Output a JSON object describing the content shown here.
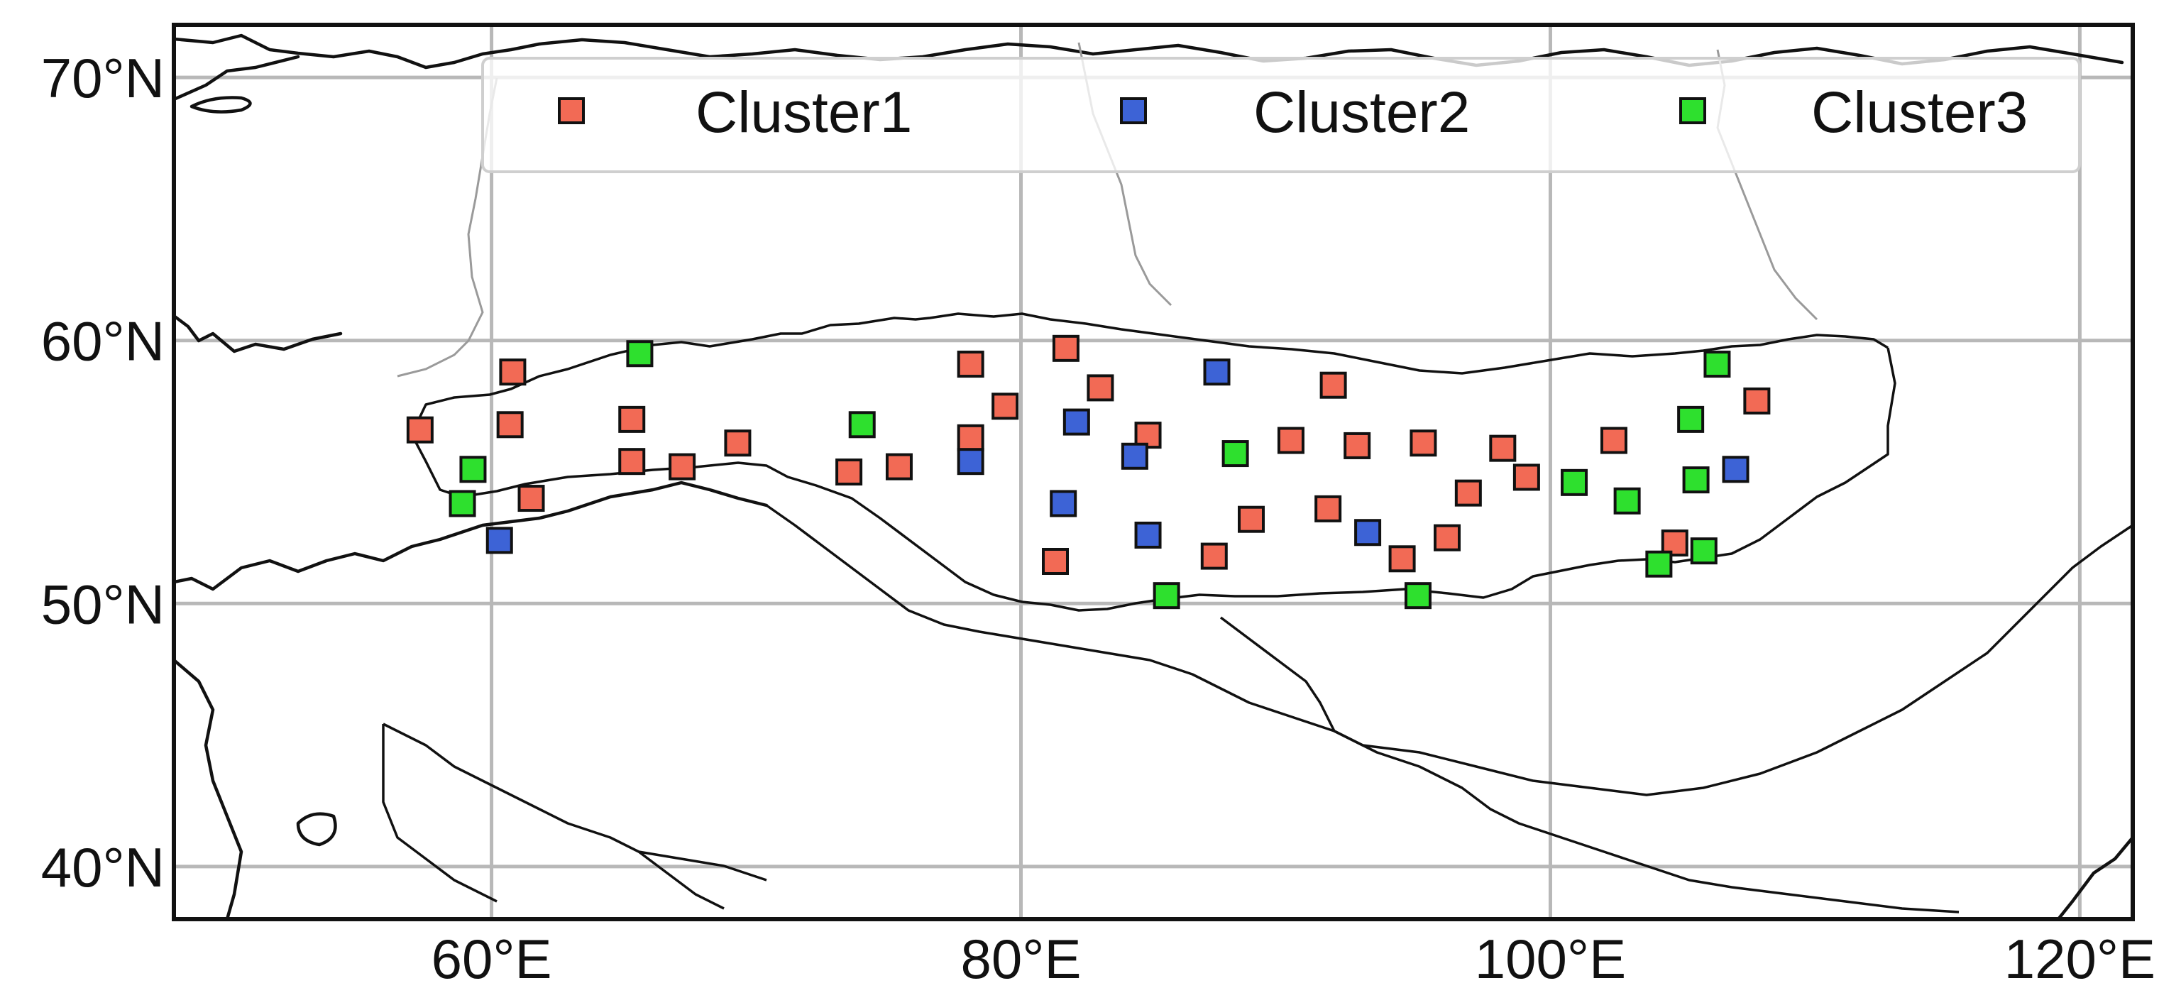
{
  "map": {
    "longitude_ticks": [
      "60°E",
      "80°E",
      "100°E",
      "120°E"
    ],
    "latitude_ticks": [
      "70°N",
      "60°N",
      "50°N",
      "40°N"
    ],
    "lon_tick_values": [
      60,
      80,
      100,
      120
    ],
    "lat_tick_values": [
      70,
      60,
      50,
      40
    ],
    "lon_range": [
      48,
      122
    ],
    "lat_range": [
      38,
      72
    ]
  },
  "legend": {
    "items": [
      {
        "label": "Cluster1",
        "color": "#f26a55"
      },
      {
        "label": "Cluster2",
        "color": "#3d63d6"
      },
      {
        "label": "Cluster3",
        "color": "#2ee02e"
      }
    ]
  },
  "chart_data": {
    "type": "scatter",
    "title": "",
    "xlabel": "",
    "ylabel": "",
    "xlim": [
      48,
      122
    ],
    "ylim": [
      38,
      72
    ],
    "x_ticks": [
      "60°E",
      "80°E",
      "100°E",
      "120°E"
    ],
    "y_ticks": [
      "70°N",
      "60°N",
      "50°N",
      "40°N"
    ],
    "grid": true,
    "legend_placement": "top",
    "series": [
      {
        "name": "Cluster1",
        "color": "#f26a55",
        "points": [
          [
            57.3,
            56.6
          ],
          [
            60.8,
            58.8
          ],
          [
            60.7,
            56.8
          ],
          [
            61.5,
            54.0
          ],
          [
            65.3,
            57.0
          ],
          [
            65.3,
            55.4
          ],
          [
            67.2,
            55.2
          ],
          [
            69.3,
            56.1
          ],
          [
            73.5,
            55.0
          ],
          [
            75.4,
            55.2
          ],
          [
            78.1,
            59.1
          ],
          [
            78.1,
            56.3
          ],
          [
            79.4,
            57.5
          ],
          [
            81.7,
            59.7
          ],
          [
            83.0,
            58.2
          ],
          [
            84.8,
            56.4
          ],
          [
            81.3,
            51.6
          ],
          [
            87.3,
            51.8
          ],
          [
            88.7,
            53.2
          ],
          [
            90.2,
            56.2
          ],
          [
            91.8,
            58.3
          ],
          [
            91.6,
            53.6
          ],
          [
            92.7,
            56.0
          ],
          [
            94.4,
            51.7
          ],
          [
            95.2,
            56.1
          ],
          [
            96.1,
            52.5
          ],
          [
            96.9,
            54.2
          ],
          [
            98.2,
            55.9
          ],
          [
            99.1,
            54.8
          ],
          [
            102.4,
            56.2
          ],
          [
            104.7,
            52.3
          ],
          [
            107.8,
            57.7
          ]
        ]
      },
      {
        "name": "Cluster2",
        "color": "#3d63d6",
        "points": [
          [
            60.3,
            52.4
          ],
          [
            78.1,
            55.4
          ],
          [
            81.6,
            53.8
          ],
          [
            82.1,
            56.9
          ],
          [
            84.3,
            55.6
          ],
          [
            84.8,
            52.6
          ],
          [
            87.4,
            58.8
          ],
          [
            93.1,
            52.7
          ],
          [
            107.0,
            55.1
          ]
        ]
      },
      {
        "name": "Cluster3",
        "color": "#2ee02e",
        "points": [
          [
            58.9,
            53.8
          ],
          [
            59.3,
            55.1
          ],
          [
            65.6,
            59.5
          ],
          [
            74.0,
            56.8
          ],
          [
            85.5,
            50.3
          ],
          [
            88.1,
            55.7
          ],
          [
            95.0,
            50.3
          ],
          [
            100.9,
            54.6
          ],
          [
            102.9,
            53.9
          ],
          [
            104.1,
            51.5
          ],
          [
            105.3,
            57.0
          ],
          [
            105.5,
            54.7
          ],
          [
            105.8,
            52.0
          ],
          [
            106.3,
            59.1
          ]
        ]
      }
    ]
  }
}
